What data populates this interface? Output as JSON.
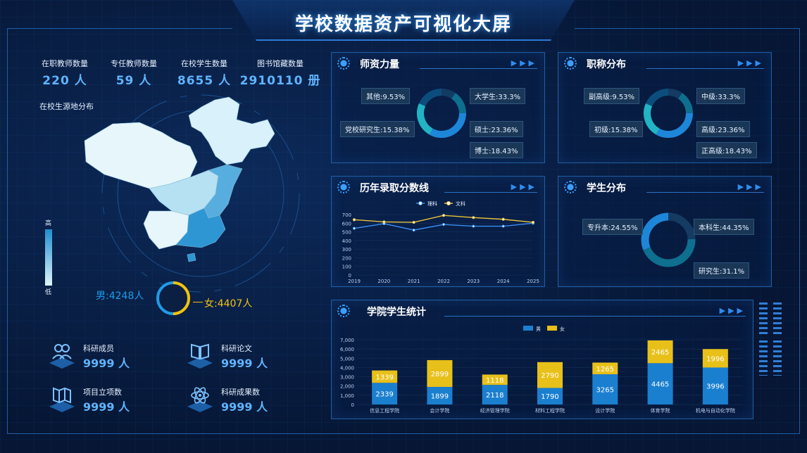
{
  "header": {
    "title": "学校数据资产可视化大屏"
  },
  "stats": [
    {
      "label": "在职教师数量",
      "value": "220 人"
    },
    {
      "label": "专任教师数量",
      "value": "59 人"
    },
    {
      "label": "在校学生数量",
      "value": "8655 人"
    },
    {
      "label": "图书馆藏数量",
      "value": "2910110 册"
    }
  ],
  "map": {
    "title": "在校生源地分布",
    "legend_high": "高",
    "legend_low": "低",
    "colors": {
      "low": "#dff4fb",
      "high": "#1f8fd0"
    }
  },
  "gender": {
    "male": "男:4248人",
    "female": "女:4407人",
    "male_color": "#1e9be8",
    "female_color": "#f2c20f"
  },
  "cards": [
    {
      "label": "科研成员",
      "value": "9999 人",
      "icon": "people-icon"
    },
    {
      "label": "科研论文",
      "value": "9999 人",
      "icon": "book-icon"
    },
    {
      "label": "项目立项数",
      "value": "9999 人",
      "icon": "map-fold-icon"
    },
    {
      "label": "科研成果数",
      "value": "9999 人",
      "icon": "atom-icon"
    }
  ],
  "faculty": {
    "title": "师资力量",
    "slices": [
      {
        "label": "其他:9.53%",
        "value": 9.53
      },
      {
        "label": "党校研究生:15.38%",
        "value": 15.38
      },
      {
        "label": "大学生:33.3%",
        "value": 33.3
      },
      {
        "label": "硕士:23.36%",
        "value": 23.36
      },
      {
        "label": "博士:18.43%",
        "value": 18.43
      }
    ]
  },
  "titles": {
    "title": "职称分布",
    "slices": [
      {
        "label": "副高级:9.53%",
        "value": 9.53
      },
      {
        "label": "初级:15.38%",
        "value": 15.38
      },
      {
        "label": "中级:33.3%",
        "value": 33.3
      },
      {
        "label": "高级:23.36%",
        "value": 23.36
      },
      {
        "label": "正高级:18.43%",
        "value": 18.43
      }
    ]
  },
  "students": {
    "title": "学生分布",
    "slices": [
      {
        "label": "专升本:24.55%",
        "value": 24.55
      },
      {
        "label": "本科生:44.35%",
        "value": 44.35
      },
      {
        "label": "研究生:31.1%",
        "value": 31.1
      }
    ]
  },
  "scores": {
    "title": "历年录取分数线",
    "chart_data": {
      "type": "line",
      "x": [
        "2019",
        "2020",
        "2021",
        "2022",
        "2023",
        "2024",
        "2025"
      ],
      "series": [
        {
          "name": "理科",
          "color": "#3b8cf0",
          "values": [
            540,
            595,
            520,
            585,
            565,
            565,
            600
          ]
        },
        {
          "name": "文科",
          "color": "#e8c33a",
          "values": [
            640,
            615,
            610,
            690,
            665,
            645,
            610
          ]
        }
      ],
      "ylim": [
        0,
        700
      ],
      "yticks": [
        "0",
        "100",
        "200",
        "300",
        "400",
        "500",
        "600",
        "700"
      ]
    }
  },
  "college": {
    "title": "学院学生统计",
    "chart_data": {
      "type": "bar",
      "categories": [
        "信息工程学院",
        "会计学院",
        "经济管理学院",
        "材料工程学院",
        "设计学院",
        "体育学院",
        "机电与自动化学院"
      ],
      "series": [
        {
          "name": "男",
          "color": "#1b7fd0",
          "values": [
            2339,
            1899,
            2118,
            1790,
            3265,
            4465,
            3996
          ]
        },
        {
          "name": "女",
          "color": "#e8c01a",
          "values": [
            1339,
            2899,
            1118,
            2790,
            1265,
            2465,
            1996
          ]
        }
      ],
      "ylim": [
        0,
        7000
      ],
      "yticks": [
        "0",
        "1,000",
        "2,000",
        "3,000",
        "4,000",
        "5,000",
        "6,000",
        "7,000"
      ]
    }
  }
}
